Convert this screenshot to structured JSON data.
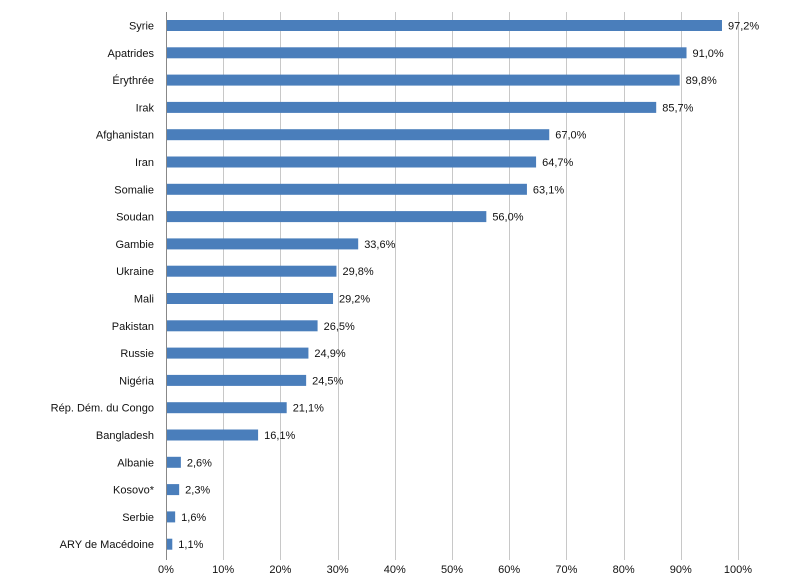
{
  "chart_data": {
    "type": "bar",
    "orientation": "horizontal",
    "categories": [
      "Syrie",
      "Apatrides",
      "Érythrée",
      "Irak",
      "Afghanistan",
      "Iran",
      "Somalie",
      "Soudan",
      "Gambie",
      "Ukraine",
      "Mali",
      "Pakistan",
      "Russie",
      "Nigéria",
      "Rép. Dém. du Congo",
      "Bangladesh",
      "Albanie",
      "Kosovo*",
      "Serbie",
      "ARY de Macédoine"
    ],
    "values": [
      97.2,
      91.0,
      89.8,
      85.7,
      67.0,
      64.7,
      63.1,
      56.0,
      33.6,
      29.8,
      29.2,
      26.5,
      24.9,
      24.5,
      21.1,
      16.1,
      2.6,
      2.3,
      1.6,
      1.1
    ],
    "value_labels": [
      "97,2%",
      "91,0%",
      "89,8%",
      "85,7%",
      "67,0%",
      "64,7%",
      "63,1%",
      "56,0%",
      "33,6%",
      "29,8%",
      "29,2%",
      "26,5%",
      "24,9%",
      "24,5%",
      "21,1%",
      "16,1%",
      "2,6%",
      "2,3%",
      "1,6%",
      "1,1%"
    ],
    "xlim": [
      0,
      100
    ],
    "x_ticks": [
      0,
      10,
      20,
      30,
      40,
      50,
      60,
      70,
      80,
      90,
      100
    ],
    "x_tick_labels": [
      "0%",
      "10%",
      "20%",
      "30%",
      "40%",
      "50%",
      "60%",
      "70%",
      "80%",
      "90%",
      "100%"
    ],
    "grid": true,
    "bar_color": "#4a7ebb",
    "legend": false
  }
}
